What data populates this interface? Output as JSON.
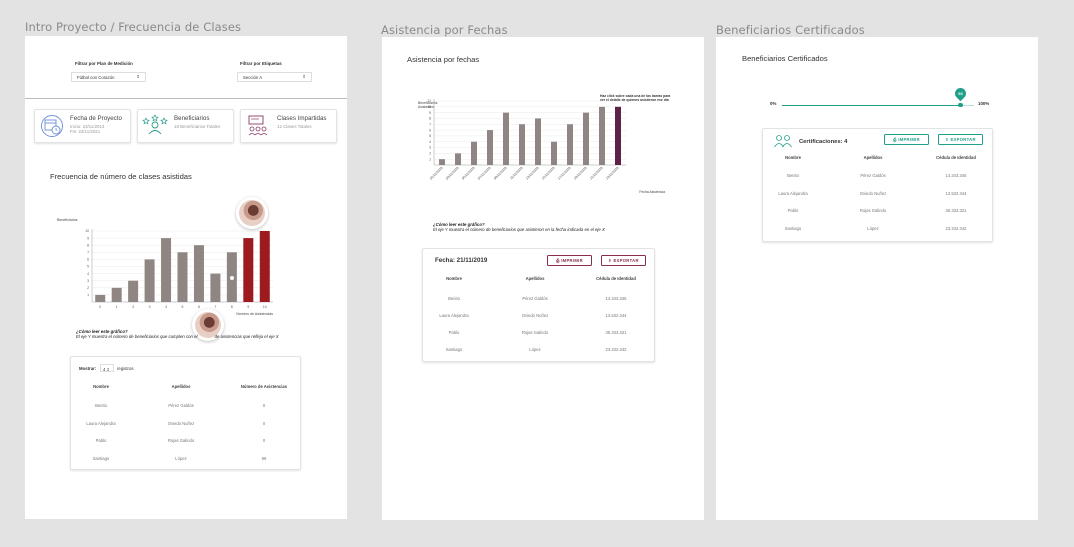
{
  "frames": {
    "f1": {
      "title": "Intro Proyecto / Frecuencia de Clases",
      "filter1": {
        "label": "Filtrar por Plan de Medición",
        "value": "Fútbol con Corazón"
      },
      "filter2": {
        "label": "Filtrar por Etiquetas",
        "value": "Sección A"
      },
      "cards": [
        {
          "title": "Fecha de Proyecto",
          "line1": "Inicio: 23/11/2013",
          "line2": "Fin: 23/11/2021",
          "icon": "calendar-clock-icon"
        },
        {
          "title": "Beneficiarios",
          "line1": "18 Beneficiarios Totales",
          "line2": "",
          "icon": "people-stars-icon"
        },
        {
          "title": "Clases Impartidas",
          "line1": "12 Clases Totales",
          "line2": "",
          "icon": "classroom-icon"
        }
      ],
      "section_title": "Frecuencia de número de clases asistidas",
      "note_title": "¿Cómo leer este gráfico?",
      "note_text": "El eje Y muestra el número de beneficiarios que cumplen con el",
      "note_text_2": "de asistencias que refleja el eje X",
      "show_label": "Mostrar:",
      "show_value": "4",
      "records_label": "registros",
      "table": {
        "headers": [
          "Nombre",
          "Apellidos",
          "Número de Asistencias"
        ],
        "rows": [
          [
            "Benito",
            "Pérez Galdós",
            "0"
          ],
          [
            "Laura Alejandra",
            "Oviedo Nuñez",
            "0"
          ],
          [
            "Pablo",
            "Rojas Galindo",
            "0"
          ],
          [
            "Santiago",
            "López",
            "99"
          ]
        ]
      }
    },
    "f2": {
      "title": "Asistencia por Fechas",
      "section_title": "Asistencia por fechas",
      "chart_hint": "Haz click sobre cada una de las barras para ver el detalle de quienes asistieron ese día",
      "note_title": "¿Cómo leer este gráfico?",
      "note_text": "El eje Y muestra el número de beneficiarios que asistieron en la fecha indicada en el eje X",
      "table_title": "Fecha: 21/11/2019",
      "print_label": "IMPRIMIR",
      "export_label": "EXPORTAR",
      "table": {
        "headers": [
          "Nombre",
          "Apellidos",
          "Cédula de Identidad"
        ],
        "rows": [
          [
            "Benito",
            "Pérez Galdós",
            "14.343.345"
          ],
          [
            "Laura Alejandra",
            "Oviedo Nuñez",
            "13.532.344"
          ],
          [
            "Pablo",
            "Rojas Galindo",
            "35.333.321"
          ],
          [
            "Santiago",
            "López",
            "23.232.342"
          ]
        ]
      }
    },
    "f3": {
      "title": "Beneficiarios Certificados",
      "section_title": "Beneficiarios Certificados",
      "progress_min": "0%",
      "progress_max": "100%",
      "progress_value": 93,
      "progress_label": "93",
      "cert_label": "Certificaciones: 4",
      "print_label": "IMPRIMIR",
      "export_label": "EXPORTAR",
      "table": {
        "headers": [
          "Nombre",
          "Apellidos",
          "Cédula de Identidad"
        ],
        "rows": [
          [
            "Benito",
            "Pérez Galdós",
            "14.343.345"
          ],
          [
            "Laura Alejandra",
            "Oviedo Nuñez",
            "13.532.344"
          ],
          [
            "Pablo",
            "Rojas Galindo",
            "35.333.321"
          ],
          [
            "Santiago",
            "López",
            "23.232.342"
          ]
        ]
      }
    }
  },
  "colors": {
    "bar_gray": "#8f8583",
    "bar_red": "#9b1b1f",
    "bar_purple": "#5e2249",
    "accent_teal": "#1fa08a",
    "accent_maroon": "#8a2e47"
  },
  "chart_data": [
    {
      "type": "bar",
      "title": "Frecuencia de número de clases asistidas",
      "ylabel": "Beneficiarios",
      "xlabel": "Número de Asistencias",
      "categories": [
        "0",
        "1",
        "2",
        "3",
        "4",
        "5",
        "6",
        "7",
        "8",
        "9",
        "10"
      ],
      "values": [
        1,
        2,
        3,
        6,
        9,
        7,
        8,
        4,
        7,
        9,
        10
      ],
      "ylim": [
        0,
        10
      ],
      "yticks": [
        "1",
        "2",
        "3",
        "4",
        "5",
        "6",
        "7",
        "8",
        "9",
        "10"
      ],
      "highlight_indices": [
        9,
        10
      ]
    },
    {
      "type": "bar",
      "title": "Asistencia por fechas",
      "ylabel": "Beneficiarios Asistentes",
      "xlabel": "Fecha Asistencia",
      "categories": [
        "01/11/2019",
        "03/11/2019",
        "05/11/2019",
        "07/11/2019",
        "09/11/2019",
        "11/11/2019",
        "13/11/2019",
        "15/11/2019",
        "17/11/2019",
        "19/11/2019",
        "21/11/2019",
        "23/11/2019"
      ],
      "values": [
        1,
        2,
        4,
        6,
        9,
        7,
        8,
        4,
        7,
        9,
        10,
        10
      ],
      "ylim": [
        0,
        11
      ],
      "yticks": [
        "1",
        "2",
        "3",
        "4",
        "5",
        "6",
        "7",
        "8",
        "9",
        "10",
        "11"
      ],
      "highlight_indices": [
        11
      ]
    }
  ]
}
